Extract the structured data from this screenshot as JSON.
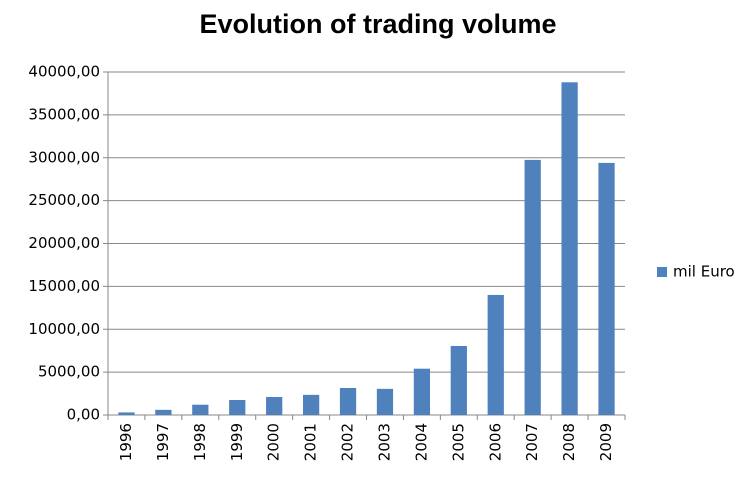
{
  "chart_data": {
    "type": "bar",
    "title": "Evolution of trading volume",
    "categories": [
      "1996",
      "1997",
      "1998",
      "1999",
      "2000",
      "2001",
      "2002",
      "2003",
      "2004",
      "2005",
      "2006",
      "2007",
      "2008",
      "2009"
    ],
    "series": [
      {
        "name": "mil Euro",
        "color": "#4f81bd",
        "values": [
          300,
          600,
          1200,
          1750,
          2100,
          2350,
          3150,
          3050,
          5400,
          8050,
          14000,
          29750,
          38800,
          29400
        ]
      }
    ],
    "ylim": [
      0,
      40000
    ],
    "yticks": [
      {
        "value": 0,
        "label": "0,00"
      },
      {
        "value": 5000,
        "label": "5000,00"
      },
      {
        "value": 10000,
        "label": "10000,00"
      },
      {
        "value": 15000,
        "label": "15000,00"
      },
      {
        "value": 20000,
        "label": "20000,00"
      },
      {
        "value": 25000,
        "label": "25000,00"
      },
      {
        "value": 30000,
        "label": "30000,00"
      },
      {
        "value": 35000,
        "label": "35000,00"
      },
      {
        "value": 40000,
        "label": "40000,00"
      }
    ],
    "grid": true,
    "legend": "right"
  }
}
